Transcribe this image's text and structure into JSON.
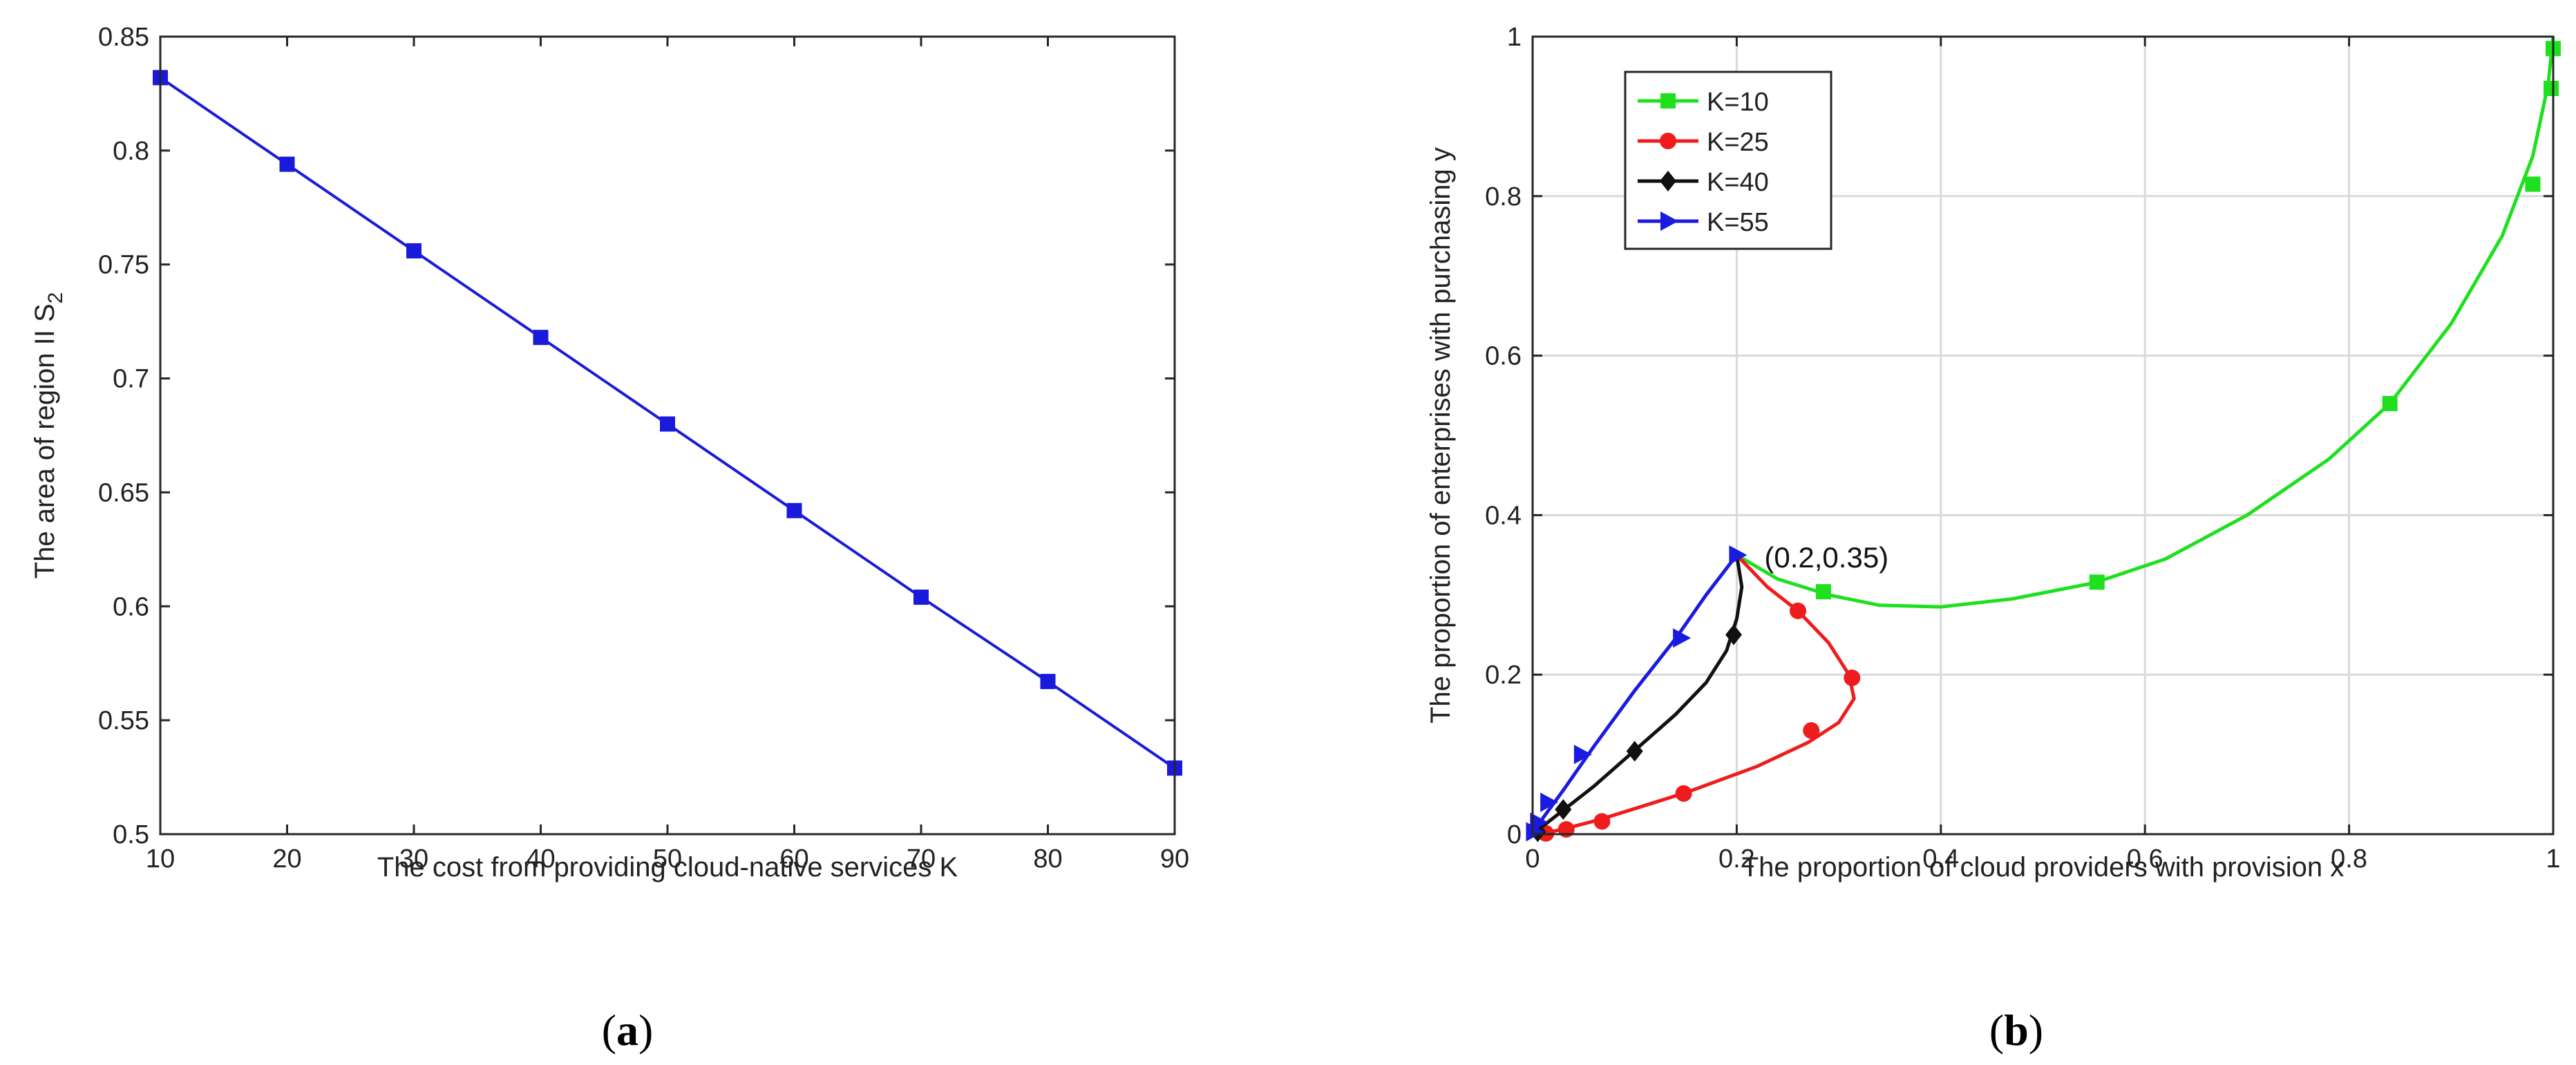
{
  "panels": [
    {
      "caption_prefix": "(",
      "caption_letter": "a",
      "caption_suffix": ")"
    },
    {
      "caption_prefix": "(",
      "caption_letter": "b",
      "caption_suffix": ")"
    }
  ],
  "chart_data": [
    {
      "type": "line",
      "title": "",
      "xlabel": "The cost from providing cloud-native services K",
      "ylabel_main": "The area of region II S",
      "ylabel_subscript": "2",
      "xlim": [
        10,
        90
      ],
      "ylim": [
        0.5,
        0.85
      ],
      "xticks": [
        10,
        20,
        30,
        40,
        50,
        60,
        70,
        80,
        90
      ],
      "xtick_labels": [
        "10",
        "20",
        "30",
        "40",
        "50",
        "60",
        "70",
        "80",
        "90"
      ],
      "yticks": [
        0.5,
        0.55,
        0.6,
        0.65,
        0.7,
        0.75,
        0.8,
        0.85
      ],
      "ytick_labels": [
        "0.5",
        "0.55",
        "0.6",
        "0.65",
        "0.7",
        "0.75",
        "0.8",
        "0.85"
      ],
      "grid": false,
      "series": [
        {
          "name": "S2",
          "color": "#1a1adb",
          "marker": "square",
          "x": [
            10,
            20,
            30,
            40,
            50,
            60,
            70,
            80,
            90
          ],
          "y": [
            0.832,
            0.794,
            0.756,
            0.718,
            0.68,
            0.642,
            0.604,
            0.567,
            0.529
          ]
        }
      ]
    },
    {
      "type": "line",
      "title": "",
      "xlabel": "The proportion of cloud providers with provision x",
      "ylabel": "The proportion of enterprises with purchasing y",
      "xlim": [
        0,
        1
      ],
      "ylim": [
        0,
        1
      ],
      "xticks": [
        0,
        0.2,
        0.4,
        0.6,
        0.8,
        1
      ],
      "xtick_labels": [
        "0",
        "0.2",
        "0.4",
        "0.6",
        "0.8",
        "1"
      ],
      "yticks": [
        0,
        0.2,
        0.4,
        0.6,
        0.8,
        1
      ],
      "ytick_labels": [
        "0",
        "0.2",
        "0.4",
        "0.6",
        "0.8",
        "1"
      ],
      "grid": true,
      "legend_position": "top-left",
      "annotation": {
        "text": "(0.2,0.35)",
        "x": 0.2,
        "y": 0.35
      },
      "series": [
        {
          "name": "K=10",
          "color": "#1ee01e",
          "marker": "square",
          "x": [
            0.2,
            0.24,
            0.29,
            0.34,
            0.4,
            0.47,
            0.55,
            0.62,
            0.7,
            0.78,
            0.84,
            0.9,
            0.95,
            0.98,
            0.995,
            1.0
          ],
          "y": [
            0.35,
            0.32,
            0.3,
            0.287,
            0.285,
            0.295,
            0.315,
            0.345,
            0.4,
            0.47,
            0.54,
            0.64,
            0.75,
            0.85,
            0.94,
            1.0
          ],
          "marker_x": [
            0.285,
            0.553,
            0.84,
            0.98,
            0.998,
            1.0
          ],
          "marker_y": [
            0.304,
            0.316,
            0.54,
            0.815,
            0.935,
            0.985
          ]
        },
        {
          "name": "K=25",
          "color": "#ee1c1c",
          "marker": "circle",
          "x": [
            0.2,
            0.23,
            0.26,
            0.29,
            0.31,
            0.315,
            0.3,
            0.27,
            0.22,
            0.15,
            0.1,
            0.065,
            0.035,
            0.015,
            0.0
          ],
          "y": [
            0.35,
            0.31,
            0.28,
            0.24,
            0.2,
            0.17,
            0.14,
            0.115,
            0.085,
            0.052,
            0.032,
            0.018,
            0.008,
            0.002,
            0.0
          ],
          "marker_x": [
            0.26,
            0.313,
            0.273,
            0.148,
            0.068,
            0.033,
            0.013
          ],
          "marker_y": [
            0.28,
            0.196,
            0.13,
            0.051,
            0.016,
            0.006,
            0.001
          ]
        },
        {
          "name": "K=40",
          "color": "#111111",
          "marker": "diamond",
          "x": [
            0.2,
            0.205,
            0.2,
            0.19,
            0.17,
            0.14,
            0.1,
            0.06,
            0.03,
            0.01,
            0.0
          ],
          "y": [
            0.35,
            0.31,
            0.27,
            0.23,
            0.19,
            0.15,
            0.105,
            0.06,
            0.03,
            0.01,
            0.0
          ],
          "marker_x": [
            0.197,
            0.1,
            0.03,
            0.005
          ],
          "marker_y": [
            0.25,
            0.104,
            0.031,
            0.003
          ]
        },
        {
          "name": "K=55",
          "color": "#1a1ae0",
          "marker": "triangle-right",
          "x": [
            0.2,
            0.17,
            0.14,
            0.1,
            0.06,
            0.03,
            0.01,
            0.003,
            0.0
          ],
          "y": [
            0.35,
            0.3,
            0.245,
            0.18,
            0.11,
            0.055,
            0.02,
            0.006,
            0.0
          ],
          "marker_x": [
            0.2,
            0.145,
            0.048,
            0.015,
            0.005,
            0.001
          ],
          "marker_y": [
            0.35,
            0.246,
            0.1,
            0.04,
            0.015,
            0.003
          ]
        }
      ]
    }
  ]
}
